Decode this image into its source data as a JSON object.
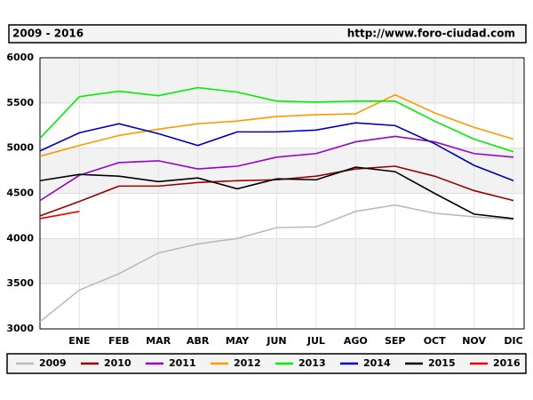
{
  "chart_data": {
    "type": "line",
    "title": "2009 - 2016",
    "source": "http://www.foro-ciudad.com",
    "categories": [
      null,
      "ENE",
      "FEB",
      "MAR",
      "ABR",
      "MAY",
      "JUN",
      "JUL",
      "AGO",
      "SEP",
      "OCT",
      "NOV",
      "DIC"
    ],
    "ylim": [
      3000,
      6000
    ],
    "yticks": [
      3000,
      3500,
      4000,
      4500,
      5000,
      5500,
      6000
    ],
    "grid": true,
    "legend": "bottom",
    "series": [
      {
        "name": "2009",
        "color": "#bbbbbb",
        "values": [
          3080,
          3430,
          3610,
          3840,
          3940,
          4000,
          4120,
          4130,
          4300,
          4370,
          4280,
          4240,
          4210
        ]
      },
      {
        "name": "2010",
        "color": "#990000",
        "values": [
          4250,
          4410,
          4580,
          4580,
          4620,
          4640,
          4650,
          4690,
          4770,
          4800,
          4690,
          4530,
          4420
        ]
      },
      {
        "name": "2011",
        "color": "#9900cc",
        "values": [
          4420,
          4700,
          4840,
          4860,
          4770,
          4800,
          4900,
          4940,
          5070,
          5130,
          5070,
          4940,
          4900
        ]
      },
      {
        "name": "2012",
        "color": "#ff9900",
        "values": [
          4910,
          5030,
          5140,
          5210,
          5270,
          5300,
          5350,
          5370,
          5380,
          5590,
          5390,
          5230,
          5100
        ]
      },
      {
        "name": "2013",
        "color": "#00ee00",
        "values": [
          5110,
          5570,
          5630,
          5580,
          5670,
          5620,
          5520,
          5510,
          5520,
          5520,
          5300,
          5100,
          4960
        ]
      },
      {
        "name": "2014",
        "color": "#0000bb",
        "values": [
          4970,
          5170,
          5270,
          5160,
          5030,
          5180,
          5180,
          5200,
          5280,
          5250,
          5050,
          4810,
          4640
        ]
      },
      {
        "name": "2015",
        "color": "#000000",
        "values": [
          4640,
          4710,
          4690,
          4630,
          4670,
          4550,
          4660,
          4650,
          4790,
          4740,
          4500,
          4270,
          4220
        ]
      },
      {
        "name": "2016",
        "color": "#ee0000",
        "values": [
          4220,
          4300,
          null,
          null,
          null,
          null,
          null,
          null,
          null,
          null,
          null,
          null,
          null
        ]
      }
    ]
  }
}
